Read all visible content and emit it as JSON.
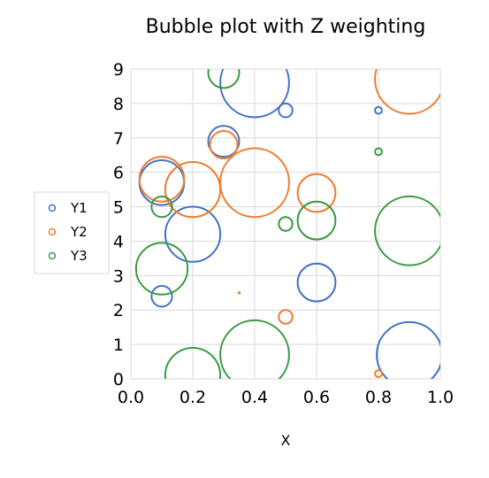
{
  "chart_data": {
    "type": "scatter",
    "title": "Bubble plot with Z weighting",
    "xlabel": "X",
    "ylabel": "",
    "xlim": [
      0.0,
      1.0
    ],
    "ylim": [
      0,
      9
    ],
    "x_ticks": [
      "0.0",
      "0.2",
      "0.4",
      "0.6",
      "0.8",
      "1.0"
    ],
    "y_ticks": [
      "0",
      "1",
      "2",
      "3",
      "4",
      "5",
      "6",
      "7",
      "8",
      "9"
    ],
    "grid": true,
    "legend_position": "left",
    "bubble_scale_note": "bubble radius in Y units",
    "series": [
      {
        "name": "Y1",
        "color": "#4472C4",
        "points": [
          {
            "x": 0.1,
            "y": 2.4,
            "r": 0.3
          },
          {
            "x": 0.1,
            "y": 5.7,
            "r": 0.65
          },
          {
            "x": 0.2,
            "y": 4.2,
            "r": 0.8
          },
          {
            "x": 0.3,
            "y": 6.9,
            "r": 0.45
          },
          {
            "x": 0.4,
            "y": 8.6,
            "r": 1.0
          },
          {
            "x": 0.5,
            "y": 7.8,
            "r": 0.2
          },
          {
            "x": 0.6,
            "y": 2.8,
            "r": 0.55
          },
          {
            "x": 0.8,
            "y": 7.8,
            "r": 0.1
          },
          {
            "x": 0.9,
            "y": 0.7,
            "r": 0.95
          }
        ]
      },
      {
        "name": "Y2",
        "color": "#ED7D31",
        "points": [
          {
            "x": 0.1,
            "y": 5.8,
            "r": 0.65
          },
          {
            "x": 0.2,
            "y": 5.5,
            "r": 0.8
          },
          {
            "x": 0.3,
            "y": 6.8,
            "r": 0.4
          },
          {
            "x": 0.35,
            "y": 2.5,
            "r": 0.02
          },
          {
            "x": 0.4,
            "y": 5.7,
            "r": 1.0
          },
          {
            "x": 0.5,
            "y": 1.8,
            "r": 0.2
          },
          {
            "x": 0.6,
            "y": 5.4,
            "r": 0.55
          },
          {
            "x": 0.8,
            "y": 0.15,
            "r": 0.1
          },
          {
            "x": 0.9,
            "y": 8.7,
            "r": 1.0
          }
        ]
      },
      {
        "name": "Y3",
        "color": "#3A9A44",
        "points": [
          {
            "x": 0.1,
            "y": 5.0,
            "r": 0.3
          },
          {
            "x": 0.1,
            "y": 3.2,
            "r": 0.75
          },
          {
            "x": 0.2,
            "y": 0.1,
            "r": 0.8
          },
          {
            "x": 0.3,
            "y": 8.9,
            "r": 0.45
          },
          {
            "x": 0.4,
            "y": 0.7,
            "r": 1.0
          },
          {
            "x": 0.5,
            "y": 4.5,
            "r": 0.2
          },
          {
            "x": 0.6,
            "y": 4.6,
            "r": 0.55
          },
          {
            "x": 0.8,
            "y": 6.6,
            "r": 0.1
          },
          {
            "x": 0.9,
            "y": 4.3,
            "r": 1.0
          }
        ]
      }
    ]
  }
}
